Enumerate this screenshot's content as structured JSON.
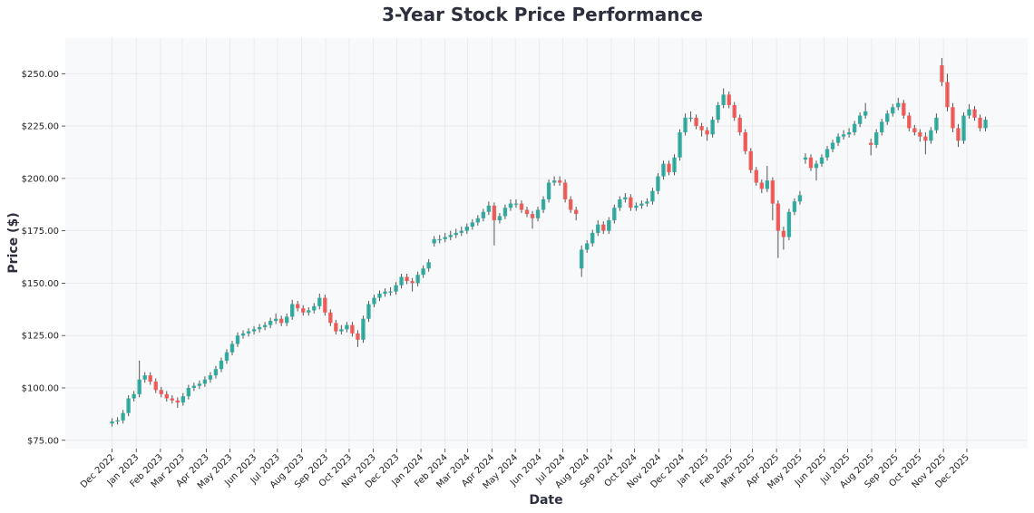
{
  "chart_data": {
    "type": "candlestick",
    "title": "3-Year Stock Price Performance",
    "xlabel": "Date",
    "ylabel": "Price ($)",
    "ylim": [
      71,
      267
    ],
    "xlim": [
      "2022-10-02",
      "2026-02-17"
    ],
    "grid": true,
    "colors": {
      "up": "#26a69a",
      "down": "#ef5350",
      "plot_bg": "#f8f9fa",
      "grid": "#e6e8eb",
      "text": "#2d2f3e"
    },
    "yticks": [
      {
        "value": 75,
        "label": "$75.00"
      },
      {
        "value": 100,
        "label": "$100.00"
      },
      {
        "value": 125,
        "label": "$125.00"
      },
      {
        "value": 150,
        "label": "$150.00"
      },
      {
        "value": 175,
        "label": "$175.00"
      },
      {
        "value": 200,
        "label": "$200.00"
      },
      {
        "value": 225,
        "label": "$225.00"
      },
      {
        "value": 250,
        "label": "$250.00"
      }
    ],
    "xticks": [
      {
        "date": "2022-12-01",
        "label": "Dec 2022"
      },
      {
        "date": "2023-01-01",
        "label": "Jan 2023"
      },
      {
        "date": "2023-02-01",
        "label": "Feb 2023"
      },
      {
        "date": "2023-03-01",
        "label": "Mar 2023"
      },
      {
        "date": "2023-04-01",
        "label": "Apr 2023"
      },
      {
        "date": "2023-05-01",
        "label": "May 2023"
      },
      {
        "date": "2023-06-01",
        "label": "Jun 2023"
      },
      {
        "date": "2023-07-01",
        "label": "Jul 2023"
      },
      {
        "date": "2023-08-01",
        "label": "Aug 2023"
      },
      {
        "date": "2023-09-01",
        "label": "Sep 2023"
      },
      {
        "date": "2023-10-01",
        "label": "Oct 2023"
      },
      {
        "date": "2023-11-01",
        "label": "Nov 2023"
      },
      {
        "date": "2023-12-01",
        "label": "Dec 2023"
      },
      {
        "date": "2024-01-01",
        "label": "Jan 2024"
      },
      {
        "date": "2024-02-01",
        "label": "Feb 2024"
      },
      {
        "date": "2024-03-01",
        "label": "Mar 2024"
      },
      {
        "date": "2024-04-01",
        "label": "Apr 2024"
      },
      {
        "date": "2024-05-01",
        "label": "May 2024"
      },
      {
        "date": "2024-06-01",
        "label": "Jun 2024"
      },
      {
        "date": "2024-07-01",
        "label": "Jul 2024"
      },
      {
        "date": "2024-08-01",
        "label": "Aug 2024"
      },
      {
        "date": "2024-09-01",
        "label": "Sep 2024"
      },
      {
        "date": "2024-10-01",
        "label": "Oct 2024"
      },
      {
        "date": "2024-11-01",
        "label": "Nov 2024"
      },
      {
        "date": "2024-12-01",
        "label": "Dec 2024"
      },
      {
        "date": "2025-01-01",
        "label": "Jan 2025"
      },
      {
        "date": "2025-02-01",
        "label": "Feb 2025"
      },
      {
        "date": "2025-03-01",
        "label": "Mar 2025"
      },
      {
        "date": "2025-04-01",
        "label": "Apr 2025"
      },
      {
        "date": "2025-05-01",
        "label": "May 2025"
      },
      {
        "date": "2025-06-01",
        "label": "Jun 2025"
      },
      {
        "date": "2025-07-01",
        "label": "Jul 2025"
      },
      {
        "date": "2025-08-01",
        "label": "Aug 2025"
      },
      {
        "date": "2025-09-01",
        "label": "Sep 2025"
      },
      {
        "date": "2025-10-01",
        "label": "Oct 2025"
      },
      {
        "date": "2025-11-01",
        "label": "Nov 2025"
      },
      {
        "date": "2025-12-01",
        "label": "Dec 2025"
      }
    ],
    "candle_fields": [
      "date",
      "open",
      "high",
      "low",
      "close"
    ],
    "candles": [
      [
        "2022-12-01",
        83,
        85.5,
        81.5,
        84
      ],
      [
        "2022-12-08",
        84,
        86,
        82.5,
        84.5
      ],
      [
        "2022-12-15",
        84.5,
        89.5,
        83,
        88
      ],
      [
        "2022-12-22",
        88,
        96.5,
        86.5,
        95
      ],
      [
        "2022-12-29",
        95,
        98.5,
        93.5,
        97
      ],
      [
        "2023-01-05",
        97,
        113,
        95.5,
        104
      ],
      [
        "2023-01-12",
        104,
        107.5,
        102.5,
        106
      ],
      [
        "2023-01-19",
        106,
        107.5,
        101.5,
        103
      ],
      [
        "2023-01-26",
        103,
        104.5,
        97.5,
        99
      ],
      [
        "2023-02-02",
        99,
        100.5,
        95.5,
        97
      ],
      [
        "2023-02-09",
        97,
        98.5,
        93.5,
        95
      ],
      [
        "2023-02-16",
        95,
        96.5,
        92.5,
        94
      ],
      [
        "2023-02-23",
        94,
        95.5,
        90.5,
        93
      ],
      [
        "2023-03-02",
        93,
        97.5,
        91.5,
        96
      ],
      [
        "2023-03-09",
        96,
        101.5,
        94.5,
        100
      ],
      [
        "2023-03-16",
        100,
        102.5,
        98.5,
        101
      ],
      [
        "2023-03-23",
        101,
        103.5,
        99.5,
        102
      ],
      [
        "2023-03-30",
        102,
        105.5,
        100.5,
        104
      ],
      [
        "2023-04-06",
        104,
        107.5,
        102.5,
        106
      ],
      [
        "2023-04-13",
        106,
        110.5,
        104.5,
        109
      ],
      [
        "2023-04-20",
        109,
        114.5,
        107.5,
        113
      ],
      [
        "2023-04-27",
        113,
        118.5,
        111.5,
        117
      ],
      [
        "2023-05-04",
        117,
        122.5,
        115.5,
        121
      ],
      [
        "2023-05-11",
        121,
        126.5,
        119.5,
        125
      ],
      [
        "2023-05-18",
        125,
        127.5,
        123.5,
        126
      ],
      [
        "2023-05-25",
        126,
        128.5,
        124.5,
        127
      ],
      [
        "2023-06-01",
        127,
        129.5,
        125.5,
        128
      ],
      [
        "2023-06-08",
        128,
        130.5,
        126.5,
        129
      ],
      [
        "2023-06-15",
        129,
        131.5,
        127.5,
        130
      ],
      [
        "2023-06-22",
        130,
        133.5,
        128.5,
        132
      ],
      [
        "2023-06-29",
        132,
        135.5,
        130.5,
        133
      ],
      [
        "2023-07-06",
        133,
        134.5,
        129.5,
        131
      ],
      [
        "2023-07-13",
        131,
        135.5,
        129.5,
        134
      ],
      [
        "2023-07-20",
        134,
        142,
        132.5,
        140
      ],
      [
        "2023-07-27",
        140,
        141.5,
        136.5,
        138
      ],
      [
        "2023-08-03",
        138,
        139.5,
        134.5,
        136
      ],
      [
        "2023-08-10",
        136,
        138.5,
        134.5,
        137
      ],
      [
        "2023-08-17",
        137,
        140.5,
        135.5,
        139
      ],
      [
        "2023-08-24",
        139,
        145,
        137.5,
        143
      ],
      [
        "2023-08-31",
        143,
        144.5,
        134.5,
        136
      ],
      [
        "2023-09-07",
        136,
        137.5,
        129.5,
        131
      ],
      [
        "2023-09-14",
        131,
        132.5,
        125.5,
        127
      ],
      [
        "2023-09-21",
        127,
        130,
        125.5,
        128
      ],
      [
        "2023-09-28",
        128,
        131.5,
        126.5,
        130
      ],
      [
        "2023-10-05",
        130,
        131.5,
        124.5,
        126
      ],
      [
        "2023-10-12",
        126,
        127.5,
        119.5,
        123
      ],
      [
        "2023-10-19",
        123,
        134.5,
        121.5,
        133
      ],
      [
        "2023-10-26",
        133,
        141.5,
        131.5,
        140
      ],
      [
        "2023-11-02",
        140,
        144.5,
        138.5,
        143
      ],
      [
        "2023-11-09",
        143,
        146.5,
        141.5,
        145
      ],
      [
        "2023-11-16",
        145,
        147.5,
        143.5,
        146
      ],
      [
        "2023-11-23",
        146,
        148,
        144,
        146
      ],
      [
        "2023-11-30",
        146,
        150.5,
        144.5,
        149
      ],
      [
        "2023-12-07",
        149,
        154.5,
        147.5,
        153
      ],
      [
        "2023-12-14",
        153,
        154.5,
        149.5,
        151
      ],
      [
        "2023-12-21",
        151,
        152.5,
        146,
        150
      ],
      [
        "2023-12-28",
        150,
        155.5,
        148.5,
        154
      ],
      [
        "2024-01-04",
        154,
        158.5,
        152.5,
        157
      ],
      [
        "2024-01-11",
        157,
        161.5,
        155.5,
        160
      ],
      [
        "2024-01-18",
        169,
        172.5,
        167.5,
        171
      ],
      [
        "2024-01-25",
        171,
        173,
        169,
        171
      ],
      [
        "2024-02-01",
        171,
        174,
        169.5,
        172
      ],
      [
        "2024-02-08",
        172,
        175,
        170.5,
        173
      ],
      [
        "2024-02-15",
        173,
        176,
        171.5,
        174
      ],
      [
        "2024-02-22",
        174,
        177,
        172.5,
        175
      ],
      [
        "2024-02-29",
        175,
        178.5,
        173.5,
        177
      ],
      [
        "2024-03-07",
        177,
        180.5,
        175.5,
        179
      ],
      [
        "2024-03-14",
        179,
        182.5,
        177.5,
        181
      ],
      [
        "2024-03-21",
        181,
        185.5,
        179.5,
        184
      ],
      [
        "2024-03-28",
        184,
        189,
        182.5,
        187
      ],
      [
        "2024-04-04",
        187,
        188.5,
        168,
        180
      ],
      [
        "2024-04-11",
        180,
        183.5,
        178.5,
        182
      ],
      [
        "2024-04-18",
        182,
        187.5,
        180.5,
        186
      ],
      [
        "2024-04-25",
        186,
        190,
        184.5,
        188
      ],
      [
        "2024-05-02",
        188,
        190,
        186,
        188
      ],
      [
        "2024-05-09",
        188,
        189.5,
        183.5,
        185
      ],
      [
        "2024-05-16",
        185,
        186.5,
        181.5,
        183
      ],
      [
        "2024-05-23",
        183,
        184.5,
        176,
        181
      ],
      [
        "2024-05-30",
        181,
        186.5,
        179.5,
        185
      ],
      [
        "2024-06-06",
        185,
        191.5,
        183.5,
        190
      ],
      [
        "2024-06-13",
        190,
        199.5,
        188.5,
        198
      ],
      [
        "2024-06-20",
        198,
        201,
        196.5,
        199
      ],
      [
        "2024-06-27",
        199,
        201,
        196.5,
        198
      ],
      [
        "2024-07-04",
        198,
        199.5,
        188.5,
        190
      ],
      [
        "2024-07-11",
        190,
        191.5,
        183.5,
        185
      ],
      [
        "2024-07-18",
        185,
        186.5,
        180,
        183
      ],
      [
        "2024-07-25",
        157,
        168,
        153,
        166
      ],
      [
        "2024-08-01",
        166,
        170.5,
        164.5,
        169
      ],
      [
        "2024-08-08",
        169,
        175.5,
        167.5,
        174
      ],
      [
        "2024-08-15",
        174,
        180,
        172.5,
        178
      ],
      [
        "2024-08-22",
        178,
        179.5,
        173.5,
        175
      ],
      [
        "2024-08-29",
        175,
        181.5,
        173.5,
        180
      ],
      [
        "2024-09-05",
        180,
        187.5,
        178.5,
        186
      ],
      [
        "2024-09-12",
        186,
        191.5,
        184.5,
        190
      ],
      [
        "2024-09-19",
        190,
        193,
        188.5,
        191
      ],
      [
        "2024-09-26",
        191,
        192.5,
        184.5,
        186
      ],
      [
        "2024-10-03",
        186,
        188.5,
        184.5,
        187
      ],
      [
        "2024-10-10",
        187,
        189.5,
        185.5,
        188
      ],
      [
        "2024-10-17",
        188,
        190.5,
        186.5,
        189
      ],
      [
        "2024-10-24",
        189,
        195.5,
        187.5,
        194
      ],
      [
        "2024-10-31",
        194,
        202.5,
        192.5,
        201
      ],
      [
        "2024-11-07",
        201,
        208.5,
        199.5,
        207
      ],
      [
        "2024-11-14",
        207,
        208.5,
        201.5,
        203
      ],
      [
        "2024-11-21",
        203,
        211.5,
        201.5,
        210
      ],
      [
        "2024-11-28",
        210,
        223.5,
        208.5,
        222
      ],
      [
        "2024-12-05",
        222,
        231,
        220.5,
        229
      ],
      [
        "2024-12-12",
        229,
        232,
        227,
        229
      ],
      [
        "2024-12-19",
        229,
        230.5,
        223.5,
        225
      ],
      [
        "2024-12-26",
        225,
        226.5,
        220,
        223
      ],
      [
        "2025-01-02",
        223,
        224.5,
        218,
        221
      ],
      [
        "2025-01-09",
        221,
        229.5,
        219.5,
        228
      ],
      [
        "2025-01-16",
        228,
        236.5,
        226.5,
        235
      ],
      [
        "2025-01-23",
        235,
        243,
        233.5,
        240
      ],
      [
        "2025-01-30",
        240,
        241.5,
        233.5,
        235
      ],
      [
        "2025-02-06",
        235,
        236.5,
        227.5,
        229
      ],
      [
        "2025-02-13",
        229,
        230.5,
        220.5,
        222
      ],
      [
        "2025-02-20",
        222,
        223.5,
        211.5,
        213
      ],
      [
        "2025-02-27",
        213,
        214.5,
        202.5,
        204
      ],
      [
        "2025-03-06",
        204,
        205.5,
        196.5,
        198
      ],
      [
        "2025-03-13",
        198,
        199.5,
        193,
        195
      ],
      [
        "2025-03-20",
        195,
        206,
        193.5,
        199
      ],
      [
        "2025-03-27",
        199,
        200.5,
        180,
        188
      ],
      [
        "2025-04-03",
        188,
        189.5,
        162,
        175
      ],
      [
        "2025-04-10",
        175,
        177,
        166,
        172
      ],
      [
        "2025-04-17",
        172,
        185.5,
        170.5,
        184
      ],
      [
        "2025-04-24",
        184,
        190.5,
        182.5,
        189
      ],
      [
        "2025-05-01",
        189,
        194,
        187.5,
        192
      ],
      [
        "2025-05-08",
        209,
        212,
        207,
        210
      ],
      [
        "2025-05-15",
        210,
        211.5,
        203.5,
        205
      ],
      [
        "2025-05-22",
        205,
        208.5,
        199,
        207
      ],
      [
        "2025-05-29",
        207,
        211.5,
        205.5,
        210
      ],
      [
        "2025-06-05",
        210,
        215.5,
        208.5,
        214
      ],
      [
        "2025-06-12",
        214,
        218.5,
        212.5,
        217
      ],
      [
        "2025-06-19",
        217,
        221.5,
        215.5,
        220
      ],
      [
        "2025-06-26",
        220,
        223,
        218.5,
        221
      ],
      [
        "2025-07-03",
        221,
        224,
        219.5,
        222
      ],
      [
        "2025-07-10",
        222,
        227.5,
        220.5,
        226
      ],
      [
        "2025-07-17",
        226,
        231.5,
        224.5,
        230
      ],
      [
        "2025-07-24",
        230,
        236,
        228.5,
        232
      ],
      [
        "2025-07-31",
        217,
        219,
        211,
        216
      ],
      [
        "2025-08-07",
        216,
        223.5,
        214.5,
        222
      ],
      [
        "2025-08-14",
        222,
        228.5,
        220.5,
        227
      ],
      [
        "2025-08-21",
        227,
        232.5,
        225.5,
        231
      ],
      [
        "2025-08-28",
        231,
        235.5,
        229.5,
        234
      ],
      [
        "2025-09-04",
        234,
        238.5,
        232.5,
        236
      ],
      [
        "2025-09-11",
        236,
        237.5,
        228.5,
        230
      ],
      [
        "2025-09-18",
        230,
        231.5,
        222.5,
        224
      ],
      [
        "2025-09-25",
        224,
        225.5,
        220.5,
        222
      ],
      [
        "2025-10-02",
        222,
        223.5,
        217.5,
        220
      ],
      [
        "2025-10-09",
        220,
        222,
        211.5,
        218
      ],
      [
        "2025-10-16",
        218,
        224.5,
        216.5,
        223
      ],
      [
        "2025-10-23",
        223,
        231,
        221.5,
        229
      ],
      [
        "2025-10-30",
        254,
        257.5,
        244,
        246
      ],
      [
        "2025-11-06",
        246,
        250,
        232,
        234
      ],
      [
        "2025-11-13",
        234,
        236,
        222,
        224
      ],
      [
        "2025-11-20",
        224,
        226,
        215,
        218
      ],
      [
        "2025-11-27",
        218,
        231.5,
        216.5,
        230
      ],
      [
        "2025-12-04",
        230,
        235.5,
        228.5,
        233
      ],
      [
        "2025-12-11",
        233,
        234.5,
        227.5,
        229
      ],
      [
        "2025-12-18",
        229,
        230.5,
        222.5,
        224
      ],
      [
        "2025-12-25",
        224,
        229.5,
        222.5,
        228
      ]
    ]
  }
}
